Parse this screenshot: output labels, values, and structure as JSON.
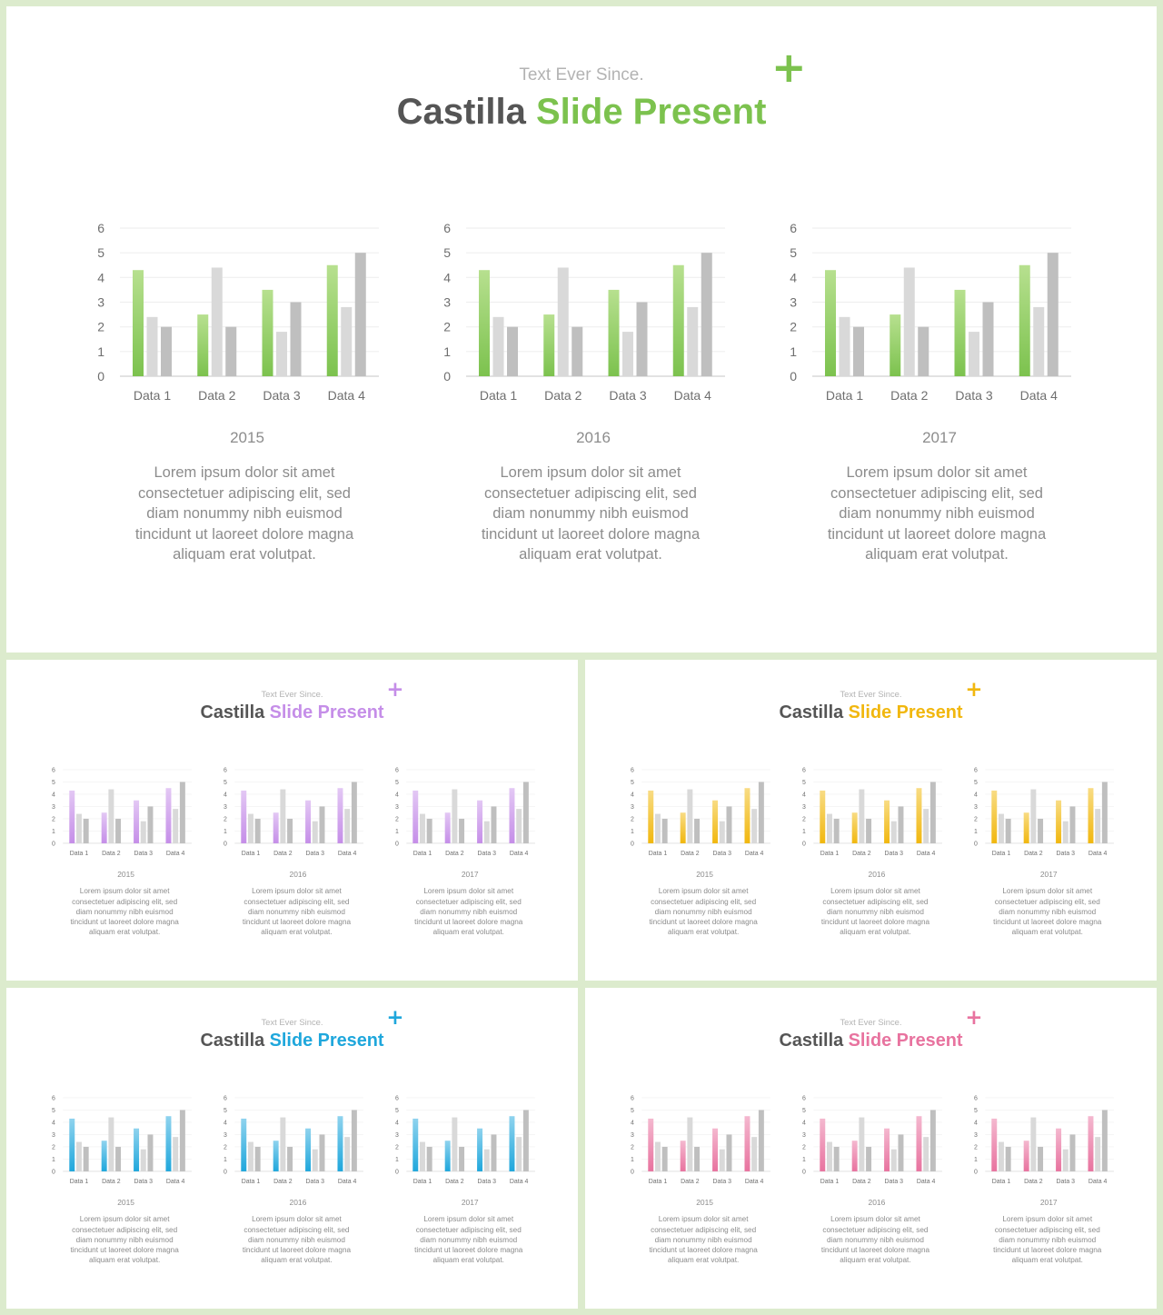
{
  "slides": [
    {
      "theme": "green",
      "accent": "#7cc24e",
      "accent_light": "#b7e08f",
      "subtitle": "Text Ever Since.",
      "title_dark": "Castilla",
      "title_accent": "Slide Present",
      "plus": "+",
      "charts": [
        {
          "year": "2015",
          "description": "Lorem ipsum dolor sit amet consectetuer adipiscing elit, sed diam nonummy nibh euismod tincidunt ut laoreet dolore magna aliquam erat volutpat."
        },
        {
          "year": "2016",
          "description": "Lorem ipsum dolor sit amet consectetuer adipiscing elit, sed diam nonummy nibh euismod tincidunt ut laoreet dolore magna aliquam erat volutpat."
        },
        {
          "year": "2017",
          "description": "Lorem ipsum dolor sit amet consectetuer adipiscing elit, sed diam nonummy nibh euismod tincidunt ut laoreet dolore magna aliquam erat volutpat."
        }
      ]
    },
    {
      "theme": "purple",
      "accent": "#c58ee8",
      "accent_light": "#e3c8f4",
      "subtitle": "Text Ever Since.",
      "title_dark": "Castilla",
      "title_accent": "Slide Present",
      "plus": "+",
      "charts": [
        {
          "year": "2015",
          "description": "Lorem ipsum dolor sit amet consectetuer adipiscing elit, sed diam nonummy nibh euismod tincidunt ut laoreet dolore magna aliquam erat volutpat."
        },
        {
          "year": "2016",
          "description": "Lorem ipsum dolor sit amet consectetuer adipiscing elit, sed diam nonummy nibh euismod tincidunt ut laoreet dolore magna aliquam erat volutpat."
        },
        {
          "year": "2017",
          "description": "Lorem ipsum dolor sit amet consectetuer adipiscing elit, sed diam nonummy nibh euismod tincidunt ut laoreet dolore magna aliquam erat volutpat."
        }
      ]
    },
    {
      "theme": "yellow",
      "accent": "#f1b70e",
      "accent_light": "#f8dc84",
      "subtitle": "Text Ever Since.",
      "title_dark": "Castilla",
      "title_accent": "Slide Present",
      "plus": "+",
      "charts": [
        {
          "year": "2015",
          "description": "Lorem ipsum dolor sit amet consectetuer adipiscing elit, sed diam nonummy nibh euismod tincidunt ut laoreet dolore magna aliquam erat volutpat."
        },
        {
          "year": "2016",
          "description": "Lorem ipsum dolor sit amet consectetuer adipiscing elit, sed diam nonummy nibh euismod tincidunt ut laoreet dolore magna aliquam erat volutpat."
        },
        {
          "year": "2017",
          "description": "Lorem ipsum dolor sit amet consectetuer adipiscing elit, sed diam nonummy nibh euismod tincidunt ut laoreet dolore magna aliquam erat volutpat."
        }
      ]
    },
    {
      "theme": "blue",
      "accent": "#1fa7dc",
      "accent_light": "#8fd3ee",
      "subtitle": "Text Ever Since.",
      "title_dark": "Castilla",
      "title_accent": "Slide Present",
      "plus": "+",
      "charts": [
        {
          "year": "2015",
          "description": "Lorem ipsum dolor sit amet consectetuer adipiscing elit, sed diam nonummy nibh euismod tincidunt ut laoreet dolore magna aliquam erat volutpat."
        },
        {
          "year": "2016",
          "description": "Lorem ipsum dolor sit amet consectetuer adipiscing elit, sed diam nonummy nibh euismod tincidunt ut laoreet dolore magna aliquam erat volutpat."
        },
        {
          "year": "2017",
          "description": "Lorem ipsum dolor sit amet consectetuer adipiscing elit, sed diam nonummy nibh euismod tincidunt ut laoreet dolore magna aliquam erat volutpat."
        }
      ]
    },
    {
      "theme": "pink",
      "accent": "#e8739f",
      "accent_light": "#f4b8cf",
      "subtitle": "Text Ever Since.",
      "title_dark": "Castilla",
      "title_accent": "Slide Present",
      "plus": "+",
      "charts": [
        {
          "year": "2015",
          "description": "Lorem ipsum dolor sit amet consectetuer adipiscing elit, sed diam nonummy nibh euismod tincidunt ut laoreet dolore magna aliquam erat volutpat."
        },
        {
          "year": "2016",
          "description": "Lorem ipsum dolor sit amet consectetuer adipiscing elit, sed diam nonummy nibh euismod tincidunt ut laoreet dolore magna aliquam erat volutpat."
        },
        {
          "year": "2017",
          "description": "Lorem ipsum dolor sit amet consectetuer adipiscing elit, sed diam nonummy nibh euismod tincidunt ut laoreet dolore magna aliquam erat volutpat."
        }
      ]
    }
  ],
  "chart_data": {
    "type": "bar",
    "categories": [
      "Data 1",
      "Data 2",
      "Data 3",
      "Data 4"
    ],
    "series": [
      {
        "values": [
          4.3,
          2.5,
          3.5,
          4.5
        ]
      },
      {
        "values": [
          2.4,
          4.4,
          1.8,
          2.8
        ]
      },
      {
        "values": [
          2.0,
          2.0,
          3.0,
          5.0
        ]
      }
    ],
    "series_colors": [
      "accent",
      "#d9d9d9",
      "#bfbfbf"
    ],
    "ylim": [
      0,
      6
    ],
    "yticks": [
      "0",
      "1",
      "2",
      "3",
      "4",
      "5",
      "6"
    ],
    "grid": true,
    "legend": "none"
  },
  "colors": {
    "background": "#dcebcd",
    "title_dark": "#555555",
    "subtitle": "#b3b3b3",
    "body_text": "#8c8c8c"
  }
}
